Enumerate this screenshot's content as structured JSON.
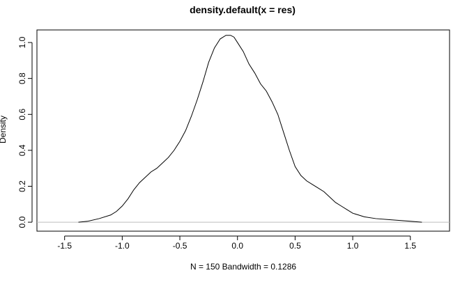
{
  "chart_data": {
    "type": "line",
    "title": "density.default(x = res)",
    "xlabel": "N = 150   Bandwidth = 0.1286",
    "ylabel": "Density",
    "xlim": [
      -1.74,
      1.84
    ],
    "ylim": [
      -0.05,
      1.07
    ],
    "xticks": [
      -1.5,
      -1.0,
      -0.5,
      0.0,
      0.5,
      1.0,
      1.5
    ],
    "xtick_labels": [
      "-1.5",
      "-1.0",
      "-0.5",
      "0.0",
      "0.5",
      "1.0",
      "1.5"
    ],
    "yticks": [
      0.0,
      0.2,
      0.4,
      0.6,
      0.8,
      1.0
    ],
    "ytick_labels": [
      "0.0",
      "0.2",
      "0.4",
      "0.6",
      "0.8",
      "1.0"
    ],
    "baseline_y": 0,
    "line_color": "#000000",
    "baseline_color": "#bebebe",
    "grid": false,
    "series": [
      {
        "x": [
          -1.38,
          -1.3,
          -1.2,
          -1.1,
          -1.05,
          -1.0,
          -0.95,
          -0.9,
          -0.85,
          -0.8,
          -0.75,
          -0.7,
          -0.65,
          -0.6,
          -0.55,
          -0.5,
          -0.45,
          -0.4,
          -0.35,
          -0.3,
          -0.25,
          -0.2,
          -0.15,
          -0.1,
          -0.06,
          -0.03,
          0.0,
          0.05,
          0.1,
          0.15,
          0.2,
          0.25,
          0.3,
          0.35,
          0.4,
          0.45,
          0.5,
          0.55,
          0.6,
          0.65,
          0.7,
          0.75,
          0.8,
          0.85,
          0.9,
          0.95,
          1.0,
          1.05,
          1.1,
          1.2,
          1.3,
          1.4,
          1.5,
          1.6
        ],
        "y": [
          0.0,
          0.005,
          0.02,
          0.04,
          0.06,
          0.09,
          0.13,
          0.18,
          0.22,
          0.25,
          0.28,
          0.3,
          0.33,
          0.36,
          0.4,
          0.45,
          0.51,
          0.59,
          0.68,
          0.78,
          0.89,
          0.97,
          1.02,
          1.04,
          1.04,
          1.03,
          1.0,
          0.95,
          0.88,
          0.83,
          0.77,
          0.73,
          0.67,
          0.6,
          0.5,
          0.4,
          0.31,
          0.26,
          0.23,
          0.21,
          0.19,
          0.17,
          0.14,
          0.11,
          0.09,
          0.07,
          0.05,
          0.04,
          0.03,
          0.02,
          0.015,
          0.01,
          0.005,
          0.0
        ]
      }
    ]
  }
}
